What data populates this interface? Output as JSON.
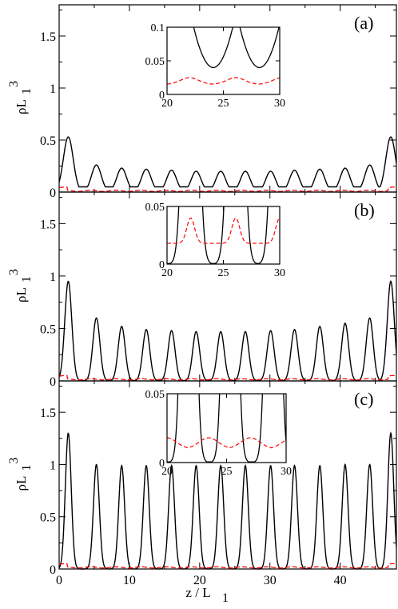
{
  "chart_data": [
    {
      "type": "line",
      "panel_label": "(a)",
      "ylabel": "ρL",
      "ylabel_sub": "1",
      "ylabel_sup": "3",
      "xlim": [
        0,
        48
      ],
      "ylim": [
        0,
        1.8
      ],
      "yticks": [
        "0",
        "0.5",
        "1",
        "1.5"
      ],
      "series": [
        {
          "style": "solid",
          "color": "#000000",
          "peaks": [
            [
              1.3,
              0.53
            ],
            [
              5.3,
              0.26
            ],
            [
              8.9,
              0.23
            ],
            [
              12.4,
              0.22
            ],
            [
              16.0,
              0.21
            ],
            [
              19.5,
              0.2
            ],
            [
              23.0,
              0.2
            ],
            [
              26.5,
              0.2
            ],
            [
              30.1,
              0.2
            ],
            [
              33.5,
              0.21
            ],
            [
              37.1,
              0.22
            ],
            [
              40.7,
              0.23
            ],
            [
              44.2,
              0.26
            ],
            [
              47.2,
              0.53
            ]
          ],
          "baseline": 0.05
        },
        {
          "style": "dashed",
          "color": "#ff0000",
          "values_note": "",
          "level": 0.012
        }
      ],
      "inset": {
        "xlim": [
          20,
          30
        ],
        "ylim": [
          0,
          0.1
        ],
        "xticks": [
          "20",
          "25",
          "30"
        ],
        "yticks": [
          "0",
          "0.05",
          "0.1"
        ],
        "black_minima_x": [
          24.1,
          28.2
        ],
        "black_minimum_y": 0.04,
        "red_peaks_x": [
          22.0,
          26.1,
          30.2
        ],
        "red_range": [
          0.015,
          0.025
        ]
      }
    },
    {
      "type": "line",
      "panel_label": "(b)",
      "ylabel": "ρL",
      "ylabel_sub": "1",
      "ylabel_sup": "3",
      "xlim": [
        0,
        48
      ],
      "ylim": [
        0,
        1.8
      ],
      "yticks": [
        "0",
        "0.5",
        "1",
        "1.5"
      ],
      "series": [
        {
          "style": "solid",
          "color": "#000000",
          "peaks": [
            [
              1.3,
              0.95
            ],
            [
              5.3,
              0.6
            ],
            [
              8.9,
              0.52
            ],
            [
              12.4,
              0.49
            ],
            [
              16.0,
              0.48
            ],
            [
              19.5,
              0.47
            ],
            [
              23.0,
              0.47
            ],
            [
              26.5,
              0.47
            ],
            [
              30.1,
              0.48
            ],
            [
              33.5,
              0.49
            ],
            [
              37.1,
              0.52
            ],
            [
              40.7,
              0.55
            ],
            [
              44.2,
              0.6
            ],
            [
              47.2,
              0.95
            ]
          ],
          "baseline": 0.003
        },
        {
          "style": "dashed",
          "color": "#ff0000",
          "level": 0.015
        }
      ],
      "inset": {
        "xlim": [
          20,
          30
        ],
        "ylim": [
          0,
          0.05
        ],
        "xticks": [
          "20",
          "25",
          "30"
        ],
        "yticks": [
          "0",
          "0.05"
        ],
        "black_peaks_x": [
          22.1,
          26.1,
          30.0
        ],
        "red_peaks_x": [
          22.1,
          26.1,
          30.0
        ],
        "red_range": [
          0.018,
          0.04
        ]
      }
    },
    {
      "type": "line",
      "panel_label": "(c)",
      "ylabel": "ρL",
      "ylabel_sub": "1",
      "ylabel_sup": "3",
      "xlabel": "z / L",
      "xlabel_sub": "1",
      "xlim": [
        0,
        48
      ],
      "ylim": [
        0,
        1.8
      ],
      "xticks": [
        "0",
        "10",
        "20",
        "30",
        "40"
      ],
      "yticks": [
        "0",
        "0.5",
        "1",
        "1.5"
      ],
      "series": [
        {
          "style": "solid",
          "color": "#000000",
          "peaks": [
            [
              1.3,
              1.3
            ],
            [
              5.3,
              1.0
            ],
            [
              8.9,
              0.99
            ],
            [
              12.4,
              0.99
            ],
            [
              16.0,
              0.99
            ],
            [
              19.5,
              0.99
            ],
            [
              23.0,
              0.99
            ],
            [
              26.5,
              0.99
            ],
            [
              30.1,
              0.99
            ],
            [
              33.5,
              0.99
            ],
            [
              37.1,
              0.99
            ],
            [
              40.7,
              1.0
            ],
            [
              44.2,
              1.0
            ],
            [
              47.2,
              1.3
            ]
          ],
          "baseline": 0.0
        },
        {
          "style": "dashed",
          "color": "#ff0000",
          "level": 0.015
        }
      ],
      "inset": {
        "xlim": [
          20,
          30
        ],
        "ylim": [
          0,
          0.05
        ],
        "xticks": [
          "20",
          "25",
          "30"
        ],
        "yticks": [
          "0",
          "0.05"
        ],
        "black_peaks_x": [
          21.8,
          25.3,
          28.9
        ],
        "red_peaks_x": [
          20.0,
          23.5,
          27.0,
          30.5
        ],
        "red_range": [
          0.01,
          0.018
        ]
      }
    }
  ]
}
